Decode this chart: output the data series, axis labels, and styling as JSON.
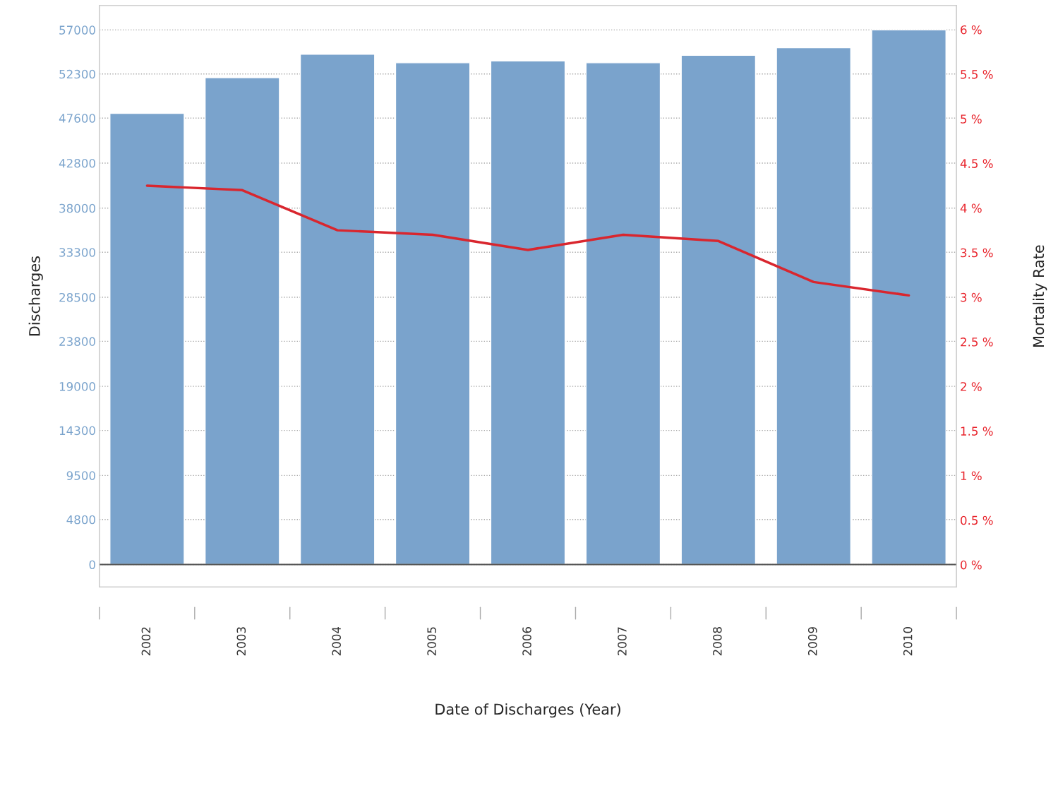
{
  "chart_data": {
    "type": "bar",
    "xlabel": "Date of Discharges (Year)",
    "ylabel": "Discharges",
    "y2label": "Mortality Rate",
    "categories": [
      "2002",
      "2003",
      "2004",
      "2005",
      "2006",
      "2007",
      "2008",
      "2009",
      "2010"
    ],
    "series": [
      {
        "color": "#7aa3cc",
        "values": [
          48100,
          51900,
          54400,
          53500,
          53700,
          53500,
          54300,
          55100,
          57000
        ]
      },
      {
        "type": "line",
        "axis": "y2",
        "color": "#d9262e",
        "values": [
          4.25,
          4.2,
          3.75,
          3.7,
          3.53,
          3.7,
          3.63,
          3.17,
          3.02
        ]
      }
    ],
    "ylim": [
      -2400,
      59600
    ],
    "yticks": [
      0,
      4800,
      9500,
      14300,
      19000,
      23800,
      28500,
      33300,
      38000,
      42800,
      47600,
      52300,
      57000
    ],
    "y2lim": [
      -0.25,
      6.27
    ],
    "y2ticks": [
      {
        "value": 0,
        "label": "0 %"
      },
      {
        "value": 0.5,
        "label": "0.5 %"
      },
      {
        "value": 1,
        "label": "1 %"
      },
      {
        "value": 1.5,
        "label": "1.5 %"
      },
      {
        "value": 2,
        "label": "2 %"
      },
      {
        "value": 2.5,
        "label": "2.5 %"
      },
      {
        "value": 3,
        "label": "3 %"
      },
      {
        "value": 3.5,
        "label": "3.5 %"
      },
      {
        "value": 4,
        "label": "4 %"
      },
      {
        "value": 4.5,
        "label": "4.5 %"
      },
      {
        "value": 5,
        "label": "5 %"
      },
      {
        "value": 5.5,
        "label": "5.5 %"
      },
      {
        "value": 6,
        "label": "6 %"
      }
    ],
    "ref_lines": [
      {
        "axis": "y",
        "value": 0,
        "color": "#555555"
      }
    ],
    "grid": "y",
    "line_style": "solid",
    "marker": "none"
  }
}
